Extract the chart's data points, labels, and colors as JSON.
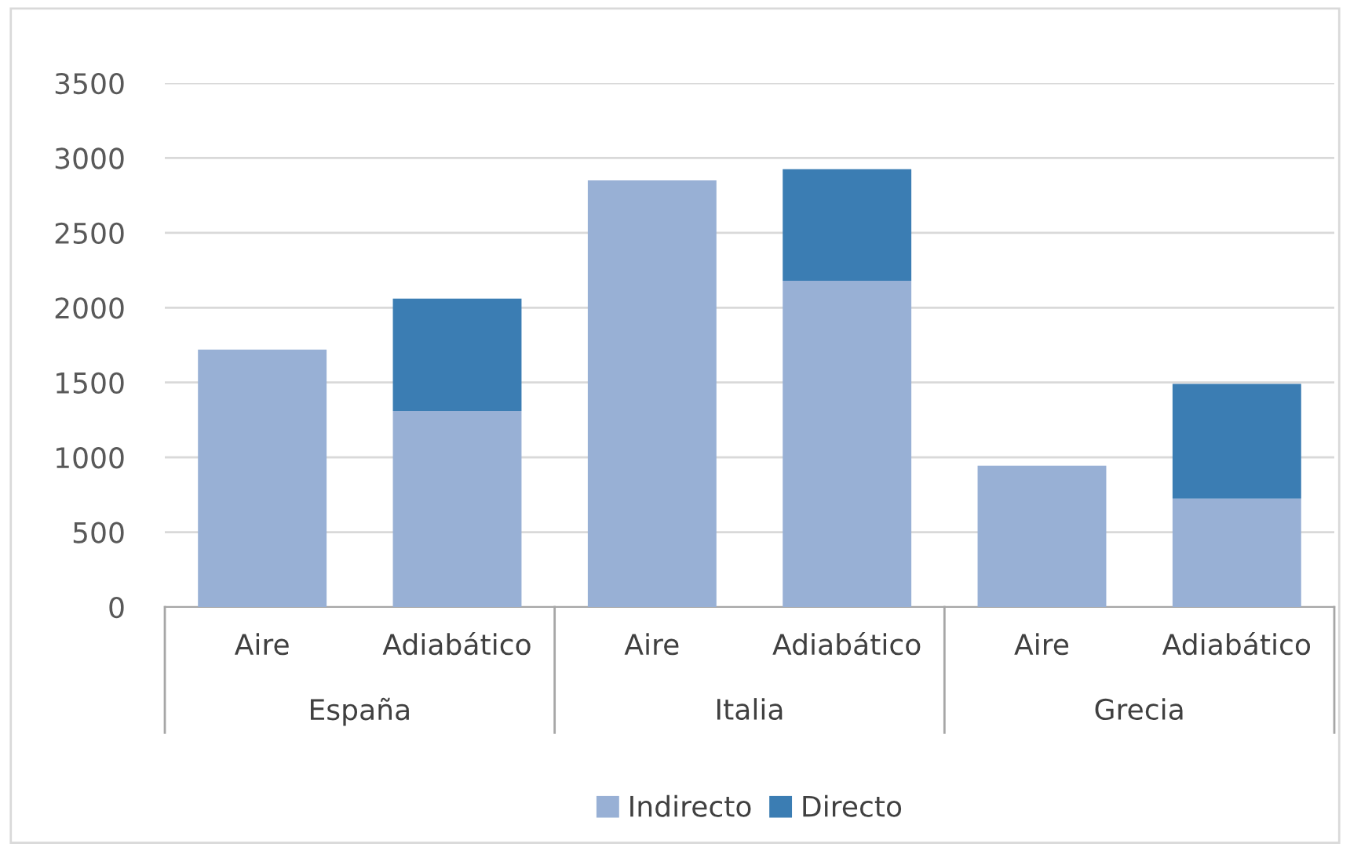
{
  "chart_data": {
    "type": "bar",
    "stacked": true,
    "categories": [
      "Aire",
      "Adiabático",
      "Aire",
      "Adiabático",
      "Aire",
      "Adiabático"
    ],
    "series": [
      {
        "name": "Indirecto",
        "color": "#98b0d5",
        "values": [
          1720,
          1310,
          2850,
          2180,
          945,
          725
        ]
      },
      {
        "name": "Directo",
        "color": "#3b7db3",
        "values": [
          null,
          750,
          null,
          745,
          null,
          765
        ]
      }
    ],
    "annotations": [
      "España",
      "Italia",
      "Grecia"
    ],
    "ylim": [
      0,
      3500
    ],
    "yticks": [
      0,
      500,
      1000,
      1500,
      2000,
      2500,
      3000,
      3500
    ],
    "grid": "y",
    "legend": "bottom"
  }
}
